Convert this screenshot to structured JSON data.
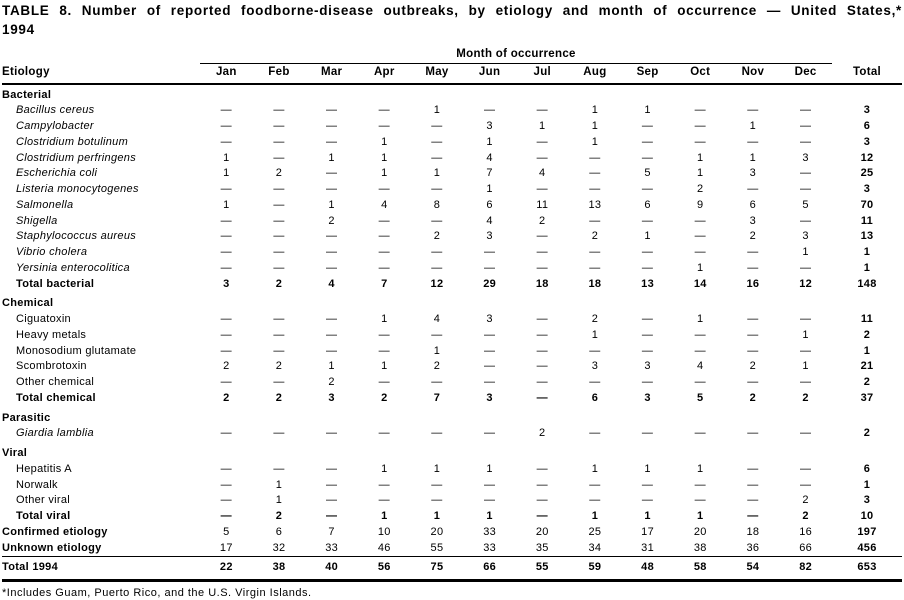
{
  "title": "TABLE 8. Number of reported foodborne-disease outbreaks, by etiology and month of occurrence — United States,* 1994",
  "footnote": "*Includes Guam, Puerto Rico, and the U.S. Virgin Islands.",
  "table": {
    "spanner": "Month of occurrence",
    "col_headers": {
      "etiology": "Etiology",
      "total": "Total"
    },
    "months": [
      "Jan",
      "Feb",
      "Mar",
      "Apr",
      "May",
      "Jun",
      "Jul",
      "Aug",
      "Sep",
      "Oct",
      "Nov",
      "Dec"
    ],
    "rows": [
      {
        "type": "section",
        "label": "Bacterial"
      },
      {
        "type": "data",
        "italic": true,
        "label": "Bacillus cereus",
        "cells": [
          "—",
          "—",
          "—",
          "—",
          "1",
          "—",
          "—",
          "1",
          "1",
          "—",
          "—",
          "—"
        ],
        "total": "3"
      },
      {
        "type": "data",
        "italic": true,
        "label": "Campylobacter",
        "cells": [
          "—",
          "—",
          "—",
          "—",
          "—",
          "3",
          "1",
          "1",
          "—",
          "—",
          "1",
          "—"
        ],
        "total": "6"
      },
      {
        "type": "data",
        "italic": true,
        "label": "Clostridium botulinum",
        "cells": [
          "—",
          "—",
          "—",
          "1",
          "—",
          "1",
          "—",
          "1",
          "—",
          "—",
          "—",
          "—"
        ],
        "total": "3"
      },
      {
        "type": "data",
        "italic": true,
        "label": "Clostridium perfringens",
        "cells": [
          "1",
          "—",
          "1",
          "1",
          "—",
          "4",
          "—",
          "—",
          "—",
          "1",
          "1",
          "3"
        ],
        "total": "12"
      },
      {
        "type": "data",
        "italic": true,
        "label": "Escherichia coli",
        "cells": [
          "1",
          "2",
          "—",
          "1",
          "1",
          "7",
          "4",
          "—",
          "5",
          "1",
          "3",
          "—"
        ],
        "total": "25"
      },
      {
        "type": "data",
        "italic": true,
        "label": "Listeria monocytogenes",
        "cells": [
          "—",
          "—",
          "—",
          "—",
          "—",
          "1",
          "—",
          "—",
          "—",
          "2",
          "—",
          "—"
        ],
        "total": "3"
      },
      {
        "type": "data",
        "italic": true,
        "label": "Salmonella",
        "cells": [
          "1",
          "—",
          "1",
          "4",
          "8",
          "6",
          "11",
          "13",
          "6",
          "9",
          "6",
          "5"
        ],
        "total": "70"
      },
      {
        "type": "data",
        "italic": true,
        "label": "Shigella",
        "cells": [
          "—",
          "—",
          "2",
          "—",
          "—",
          "4",
          "2",
          "—",
          "—",
          "—",
          "3",
          "—"
        ],
        "total": "11"
      },
      {
        "type": "data",
        "italic": true,
        "label": "Staphylococcus aureus",
        "cells": [
          "—",
          "—",
          "—",
          "—",
          "2",
          "3",
          "—",
          "2",
          "1",
          "—",
          "2",
          "3"
        ],
        "total": "13"
      },
      {
        "type": "data",
        "italic": true,
        "label": "Vibrio cholera",
        "cells": [
          "—",
          "—",
          "—",
          "—",
          "—",
          "—",
          "—",
          "—",
          "—",
          "—",
          "—",
          "1"
        ],
        "total": "1"
      },
      {
        "type": "data",
        "italic": true,
        "label": "Yersinia enterocolitica",
        "cells": [
          "—",
          "—",
          "—",
          "—",
          "—",
          "—",
          "—",
          "—",
          "—",
          "1",
          "—",
          "—"
        ],
        "total": "1"
      },
      {
        "type": "total",
        "label": "Total bacterial",
        "cells": [
          "3",
          "2",
          "4",
          "7",
          "12",
          "29",
          "18",
          "18",
          "13",
          "14",
          "16",
          "12"
        ],
        "total": "148"
      },
      {
        "type": "section",
        "label": "Chemical"
      },
      {
        "type": "data",
        "label": "Ciguatoxin",
        "cells": [
          "—",
          "—",
          "—",
          "1",
          "4",
          "3",
          "—",
          "2",
          "—",
          "1",
          "—",
          "—"
        ],
        "total": "11"
      },
      {
        "type": "data",
        "label": "Heavy metals",
        "cells": [
          "—",
          "—",
          "—",
          "—",
          "—",
          "—",
          "—",
          "1",
          "—",
          "—",
          "—",
          "1"
        ],
        "total": "2"
      },
      {
        "type": "data",
        "label": "Monosodium glutamate",
        "cells": [
          "—",
          "—",
          "—",
          "—",
          "1",
          "—",
          "—",
          "—",
          "—",
          "—",
          "—",
          "—"
        ],
        "total": "1"
      },
      {
        "type": "data",
        "label": "Scombrotoxin",
        "cells": [
          "2",
          "2",
          "1",
          "1",
          "2",
          "—",
          "—",
          "3",
          "3",
          "4",
          "2",
          "1"
        ],
        "total": "21"
      },
      {
        "type": "data",
        "label": "Other chemical",
        "cells": [
          "—",
          "—",
          "2",
          "—",
          "—",
          "—",
          "—",
          "—",
          "—",
          "—",
          "—",
          "—"
        ],
        "total": "2"
      },
      {
        "type": "total",
        "label": "Total chemical",
        "cells": [
          "2",
          "2",
          "3",
          "2",
          "7",
          "3",
          "—",
          "6",
          "3",
          "5",
          "2",
          "2"
        ],
        "total": "37"
      },
      {
        "type": "section",
        "label": "Parasitic"
      },
      {
        "type": "data",
        "italic": true,
        "label": "Giardia lamblia",
        "cells": [
          "—",
          "—",
          "—",
          "—",
          "—",
          "—",
          "2",
          "—",
          "—",
          "—",
          "—",
          "—"
        ],
        "total": "2"
      },
      {
        "type": "section",
        "label": "Viral"
      },
      {
        "type": "data",
        "label": "Hepatitis A",
        "cells": [
          "—",
          "—",
          "—",
          "1",
          "1",
          "1",
          "—",
          "1",
          "1",
          "1",
          "—",
          "—"
        ],
        "total": "6"
      },
      {
        "type": "data",
        "label": "Norwalk",
        "cells": [
          "—",
          "1",
          "—",
          "—",
          "—",
          "—",
          "—",
          "—",
          "—",
          "—",
          "—",
          "—"
        ],
        "total": "1"
      },
      {
        "type": "data",
        "label": "Other viral",
        "cells": [
          "—",
          "1",
          "—",
          "—",
          "—",
          "—",
          "—",
          "—",
          "—",
          "—",
          "—",
          "2"
        ],
        "total": "3"
      },
      {
        "type": "total",
        "label": "Total viral",
        "cells": [
          "—",
          "2",
          "—",
          "1",
          "1",
          "1",
          "—",
          "1",
          "1",
          "1",
          "—",
          "2"
        ],
        "total": "10"
      },
      {
        "type": "summary",
        "label": "Confirmed etiology",
        "cells": [
          "5",
          "6",
          "7",
          "10",
          "20",
          "33",
          "20",
          "25",
          "17",
          "20",
          "18",
          "16"
        ],
        "total": "197"
      },
      {
        "type": "summary",
        "label": "Unknown etiology",
        "cells": [
          "17",
          "32",
          "33",
          "46",
          "55",
          "33",
          "35",
          "34",
          "31",
          "38",
          "36",
          "66"
        ],
        "total": "456"
      },
      {
        "type": "grand",
        "label": "Total 1994",
        "cells": [
          "22",
          "38",
          "40",
          "56",
          "75",
          "66",
          "55",
          "59",
          "48",
          "58",
          "54",
          "82"
        ],
        "total": "653"
      }
    ]
  }
}
